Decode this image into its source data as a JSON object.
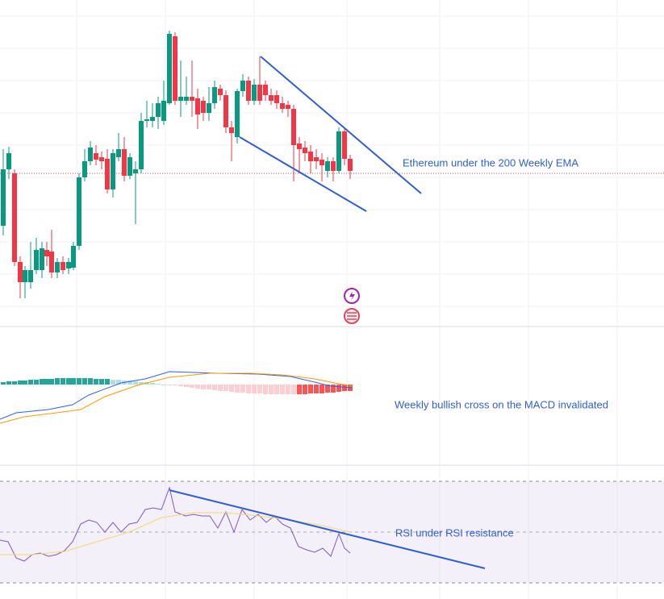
{
  "annotations": [
    "Ethereum under the 200 Weekly EMA",
    "Weekly bullish cross on the MACD invalidated",
    "RSI under RSI resistance"
  ]
}
